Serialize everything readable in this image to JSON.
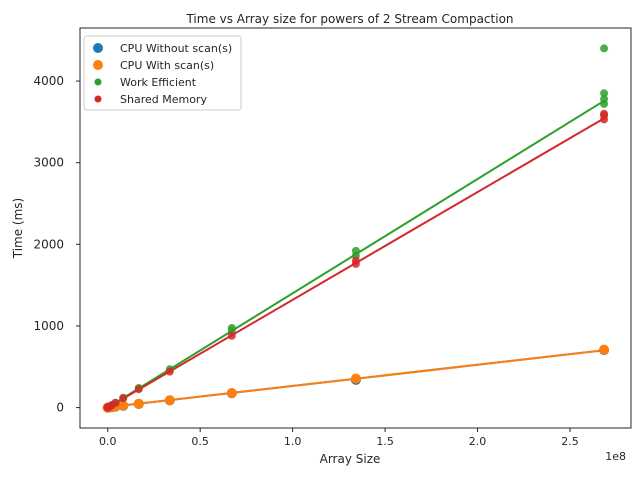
{
  "chart_data": {
    "type": "scatter",
    "title": "Time vs Array size for powers of 2 Stream Compaction",
    "xlabel": "Array Size",
    "ylabel": "Time (ms)",
    "x_offset_label": "1e8",
    "x_scale": 100000000,
    "xlim": [
      -15000000,
      283000000
    ],
    "ylim": [
      -250,
      4650
    ],
    "x_ticks": [
      0,
      50000000,
      100000000,
      150000000,
      200000000,
      250000000
    ],
    "x_tick_labels": [
      "0.0",
      "0.5",
      "1.0",
      "1.5",
      "2.0",
      "2.5"
    ],
    "y_ticks": [
      0,
      1000,
      2000,
      3000,
      4000
    ],
    "y_tick_labels": [
      "0",
      "1000",
      "2000",
      "3000",
      "4000"
    ],
    "legend_position": "top-left",
    "grid": false,
    "series": [
      {
        "name": "CPU Without scan(s)",
        "color": "#1f77b4",
        "marker_size": "large",
        "trend": {
          "slope": 2.6e-06,
          "intercept": 5
        },
        "points": [
          [
            256,
            0
          ],
          [
            1024,
            0
          ],
          [
            4096,
            0
          ],
          [
            16384,
            0
          ],
          [
            65536,
            0
          ],
          [
            262144,
            1
          ],
          [
            1048576,
            3
          ],
          [
            2097152,
            5
          ],
          [
            4194304,
            11
          ],
          [
            8388608,
            22
          ],
          [
            16777216,
            44
          ],
          [
            33554432,
            88
          ],
          [
            67108864,
            176
          ],
          [
            134217728,
            340
          ],
          [
            268435456,
            705
          ]
        ]
      },
      {
        "name": "CPU With scan(s)",
        "color": "#ff7f0e",
        "marker_size": "large",
        "trend": {
          "slope": 2.6e-06,
          "intercept": 5
        },
        "points": [
          [
            256,
            0
          ],
          [
            1024,
            0
          ],
          [
            4096,
            0
          ],
          [
            16384,
            0
          ],
          [
            65536,
            0
          ],
          [
            262144,
            1
          ],
          [
            1048576,
            3
          ],
          [
            2097152,
            6
          ],
          [
            4194304,
            12
          ],
          [
            8388608,
            24
          ],
          [
            16777216,
            47
          ],
          [
            33554432,
            90
          ],
          [
            67108864,
            178
          ],
          [
            134217728,
            355
          ],
          [
            268435456,
            710
          ]
        ]
      },
      {
        "name": "Work Efficient",
        "color": "#2ca02c",
        "marker_size": "small",
        "trend": {
          "slope": 1.4e-05,
          "intercept": 0
        },
        "points": [
          [
            256,
            0
          ],
          [
            1024,
            0
          ],
          [
            4096,
            0
          ],
          [
            16384,
            1
          ],
          [
            65536,
            2
          ],
          [
            262144,
            4
          ],
          [
            1048576,
            15
          ],
          [
            2097152,
            30
          ],
          [
            4194304,
            60
          ],
          [
            8388608,
            120
          ],
          [
            16777216,
            240
          ],
          [
            33554432,
            470
          ],
          [
            67108864,
            940
          ],
          [
            67108864,
            975
          ],
          [
            134217728,
            1860
          ],
          [
            134217728,
            1920
          ],
          [
            268435456,
            3720
          ],
          [
            268435456,
            3780
          ],
          [
            268435456,
            3850
          ],
          [
            268435456,
            4400
          ]
        ]
      },
      {
        "name": "Shared Memory",
        "color": "#d62728",
        "marker_size": "small",
        "trend": {
          "slope": 1.32e-05,
          "intercept": 0
        },
        "points": [
          [
            256,
            0
          ],
          [
            1024,
            0
          ],
          [
            4096,
            0
          ],
          [
            16384,
            1
          ],
          [
            65536,
            2
          ],
          [
            262144,
            4
          ],
          [
            1048576,
            14
          ],
          [
            2097152,
            28
          ],
          [
            4194304,
            56
          ],
          [
            8388608,
            115
          ],
          [
            16777216,
            225
          ],
          [
            33554432,
            440
          ],
          [
            67108864,
            880
          ],
          [
            134217728,
            1760
          ],
          [
            134217728,
            1800
          ],
          [
            268435456,
            3530
          ],
          [
            268435456,
            3580
          ],
          [
            268435456,
            3600
          ]
        ]
      }
    ]
  }
}
